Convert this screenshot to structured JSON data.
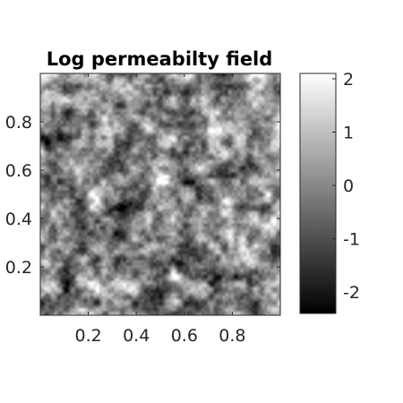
{
  "chart_data": {
    "type": "heatmap",
    "title": "Log permeabilty field",
    "xlabel": "",
    "ylabel": "",
    "xlim": [
      0,
      1
    ],
    "ylim": [
      0,
      1
    ],
    "x_ticks": [
      0.2,
      0.4,
      0.6,
      0.8
    ],
    "x_tick_labels": [
      "0.2",
      "0.4",
      "0.6",
      "0.8"
    ],
    "y_ticks": [
      0.2,
      0.4,
      0.6,
      0.8
    ],
    "y_tick_labels": [
      "0.2",
      "0.4",
      "0.6",
      "0.8"
    ],
    "colormap": "gray",
    "colorbar": {
      "min": -2.4,
      "max": 2.1,
      "ticks": [
        -2,
        -1,
        0,
        1,
        2
      ],
      "tick_labels": [
        "-2",
        "-1",
        "0",
        "1",
        "2"
      ],
      "placement": "right"
    },
    "grid": false
  }
}
